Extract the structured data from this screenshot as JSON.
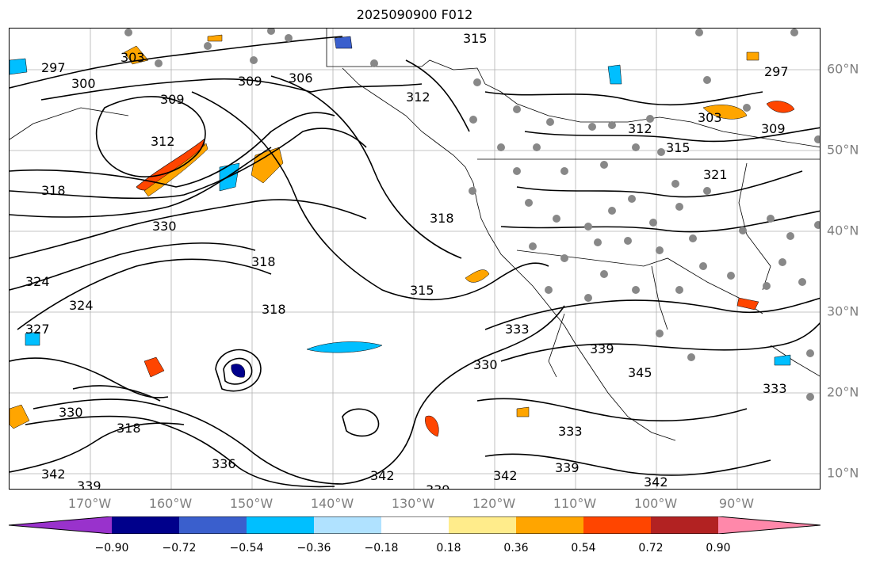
{
  "title": "2025090900 F012",
  "longitude_labels": [
    "170°W",
    "160°W",
    "150°W",
    "140°W",
    "130°W",
    "120°W",
    "110°W",
    "100°W",
    "90°W"
  ],
  "latitude_labels": [
    "60°N",
    "50°N",
    "40°N",
    "30°N",
    "20°N",
    "10°N"
  ],
  "contour_labels": [
    "297",
    "300",
    "303",
    "306",
    "309",
    "309",
    "312",
    "312",
    "315",
    "315",
    "318",
    "318",
    "318",
    "318",
    "318",
    "321",
    "324",
    "324",
    "327",
    "330",
    "330",
    "330",
    "333",
    "333",
    "333",
    "336",
    "339",
    "339",
    "339",
    "339",
    "342",
    "342",
    "342",
    "342",
    "345",
    "297",
    "303",
    "309",
    "315",
    "312"
  ],
  "colorbar": {
    "ticks": [
      "−0.90",
      "−0.72",
      "−0.54",
      "−0.36",
      "−0.18",
      "0.18",
      "0.36",
      "0.54",
      "0.72",
      "0.90"
    ],
    "colors": [
      "#9932cc",
      "#00008b",
      "#3a5fcd",
      "#00bfff",
      "#b0e2ff",
      "#ffffff",
      "#ffec8b",
      "#ffa500",
      "#ff4500",
      "#b22222",
      "#ff88aa"
    ]
  },
  "colors": {
    "axis_label": "#7f7f7f",
    "contour": "#000000",
    "station_dot": "#888888"
  }
}
